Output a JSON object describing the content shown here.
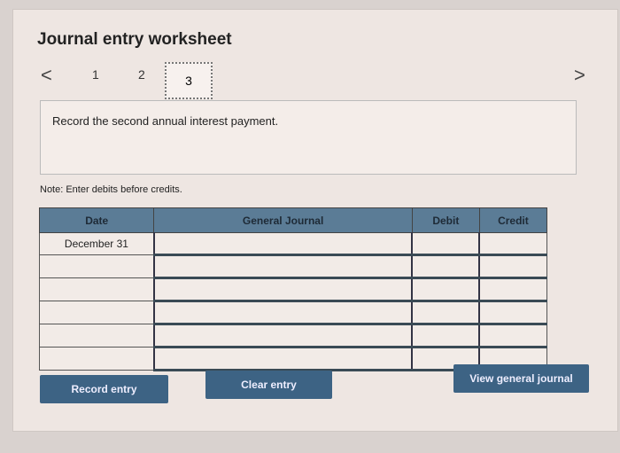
{
  "title": "Journal entry worksheet",
  "pager": {
    "prev_icon": "chevron-left-icon",
    "next_icon": "chevron-right-icon",
    "pages": [
      "1",
      "2",
      "3"
    ],
    "current": "3"
  },
  "prompt": "Record the second annual interest payment.",
  "note": "Note: Enter debits before credits.",
  "table": {
    "headers": [
      "Date",
      "General Journal",
      "Debit",
      "Credit"
    ],
    "rows": [
      {
        "date": "December 31",
        "account": "",
        "debit": "",
        "credit": ""
      },
      {
        "date": "",
        "account": "",
        "debit": "",
        "credit": ""
      },
      {
        "date": "",
        "account": "",
        "debit": "",
        "credit": ""
      },
      {
        "date": "",
        "account": "",
        "debit": "",
        "credit": ""
      },
      {
        "date": "",
        "account": "",
        "debit": "",
        "credit": ""
      },
      {
        "date": "",
        "account": "",
        "debit": "",
        "credit": ""
      }
    ]
  },
  "buttons": {
    "record": "Record entry",
    "clear": "Clear entry",
    "view": "View general journal"
  }
}
